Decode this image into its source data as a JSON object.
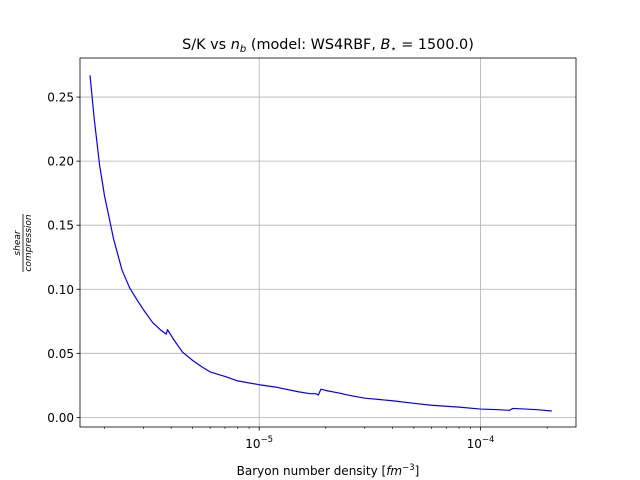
{
  "chart_data": {
    "type": "line",
    "title": "S/K vs n_b (model: WS4RBF, B_* = 1500.0)",
    "title_parts": {
      "prefix": "S/K vs ",
      "var": "n",
      "var_sub": "b",
      "model": " (model: WS4RBF, ",
      "bstar": "B",
      "bstar_sub": "⋆",
      "bstar_value": " = 1500.0)"
    },
    "xlabel": "Baryon number density [fm⁻³]",
    "xlabel_parts": {
      "text": "Baryon number density [",
      "unit": "fm",
      "exp": "−3",
      "close": "]"
    },
    "ylabel": "shear / compression",
    "ylabel_parts": {
      "numerator": "shear",
      "denominator": "compression"
    },
    "x_scale": "log",
    "xlim": [
      1.55e-06,
      0.00027
    ],
    "ylim": [
      -0.0075,
      0.2805
    ],
    "grid": true,
    "line_color": "#0000ff",
    "x_ticks": [
      {
        "value": 1e-05,
        "base": "10",
        "exp": "−5"
      },
      {
        "value": 0.0001,
        "base": "10",
        "exp": "−4"
      }
    ],
    "y_ticks": [
      {
        "value": 0.0,
        "label": "0.00"
      },
      {
        "value": 0.05,
        "label": "0.05"
      },
      {
        "value": 0.1,
        "label": "0.10"
      },
      {
        "value": 0.15,
        "label": "0.15"
      },
      {
        "value": 0.2,
        "label": "0.20"
      },
      {
        "value": 0.25,
        "label": "0.25"
      }
    ],
    "series": [
      {
        "color": "#0000ff",
        "x": [
          1.72e-06,
          1.8e-06,
          1.9e-06,
          2e-06,
          2.2e-06,
          2.4e-06,
          2.6e-06,
          2.8e-06,
          3e-06,
          3.3e-06,
          3.6e-06,
          3.8e-06,
          3.85e-06,
          4.1e-06,
          4.5e-06,
          5e-06,
          5.5e-06,
          6e-06,
          7e-06,
          8e-06,
          1e-05,
          1.2e-05,
          1.5e-05,
          1.7e-05,
          1.8e-05,
          1.85e-05,
          1.9e-05,
          2e-05,
          2.3e-05,
          2.5e-05,
          3e-05,
          4e-05,
          5e-05,
          6e-05,
          8e-05,
          0.0001,
          0.00012,
          0.000135,
          0.00014,
          0.00016,
          0.00018,
          0.00021
        ],
        "y": [
          0.267,
          0.232,
          0.197,
          0.173,
          0.139,
          0.115,
          0.101,
          0.092,
          0.084,
          0.074,
          0.068,
          0.065,
          0.0685,
          0.061,
          0.051,
          0.0445,
          0.0395,
          0.0355,
          0.032,
          0.0285,
          0.0255,
          0.0235,
          0.02,
          0.0185,
          0.0185,
          0.0175,
          0.022,
          0.021,
          0.019,
          0.0175,
          0.015,
          0.013,
          0.011,
          0.0095,
          0.008,
          0.0065,
          0.006,
          0.0055,
          0.007,
          0.0065,
          0.006,
          0.005
        ]
      }
    ]
  }
}
